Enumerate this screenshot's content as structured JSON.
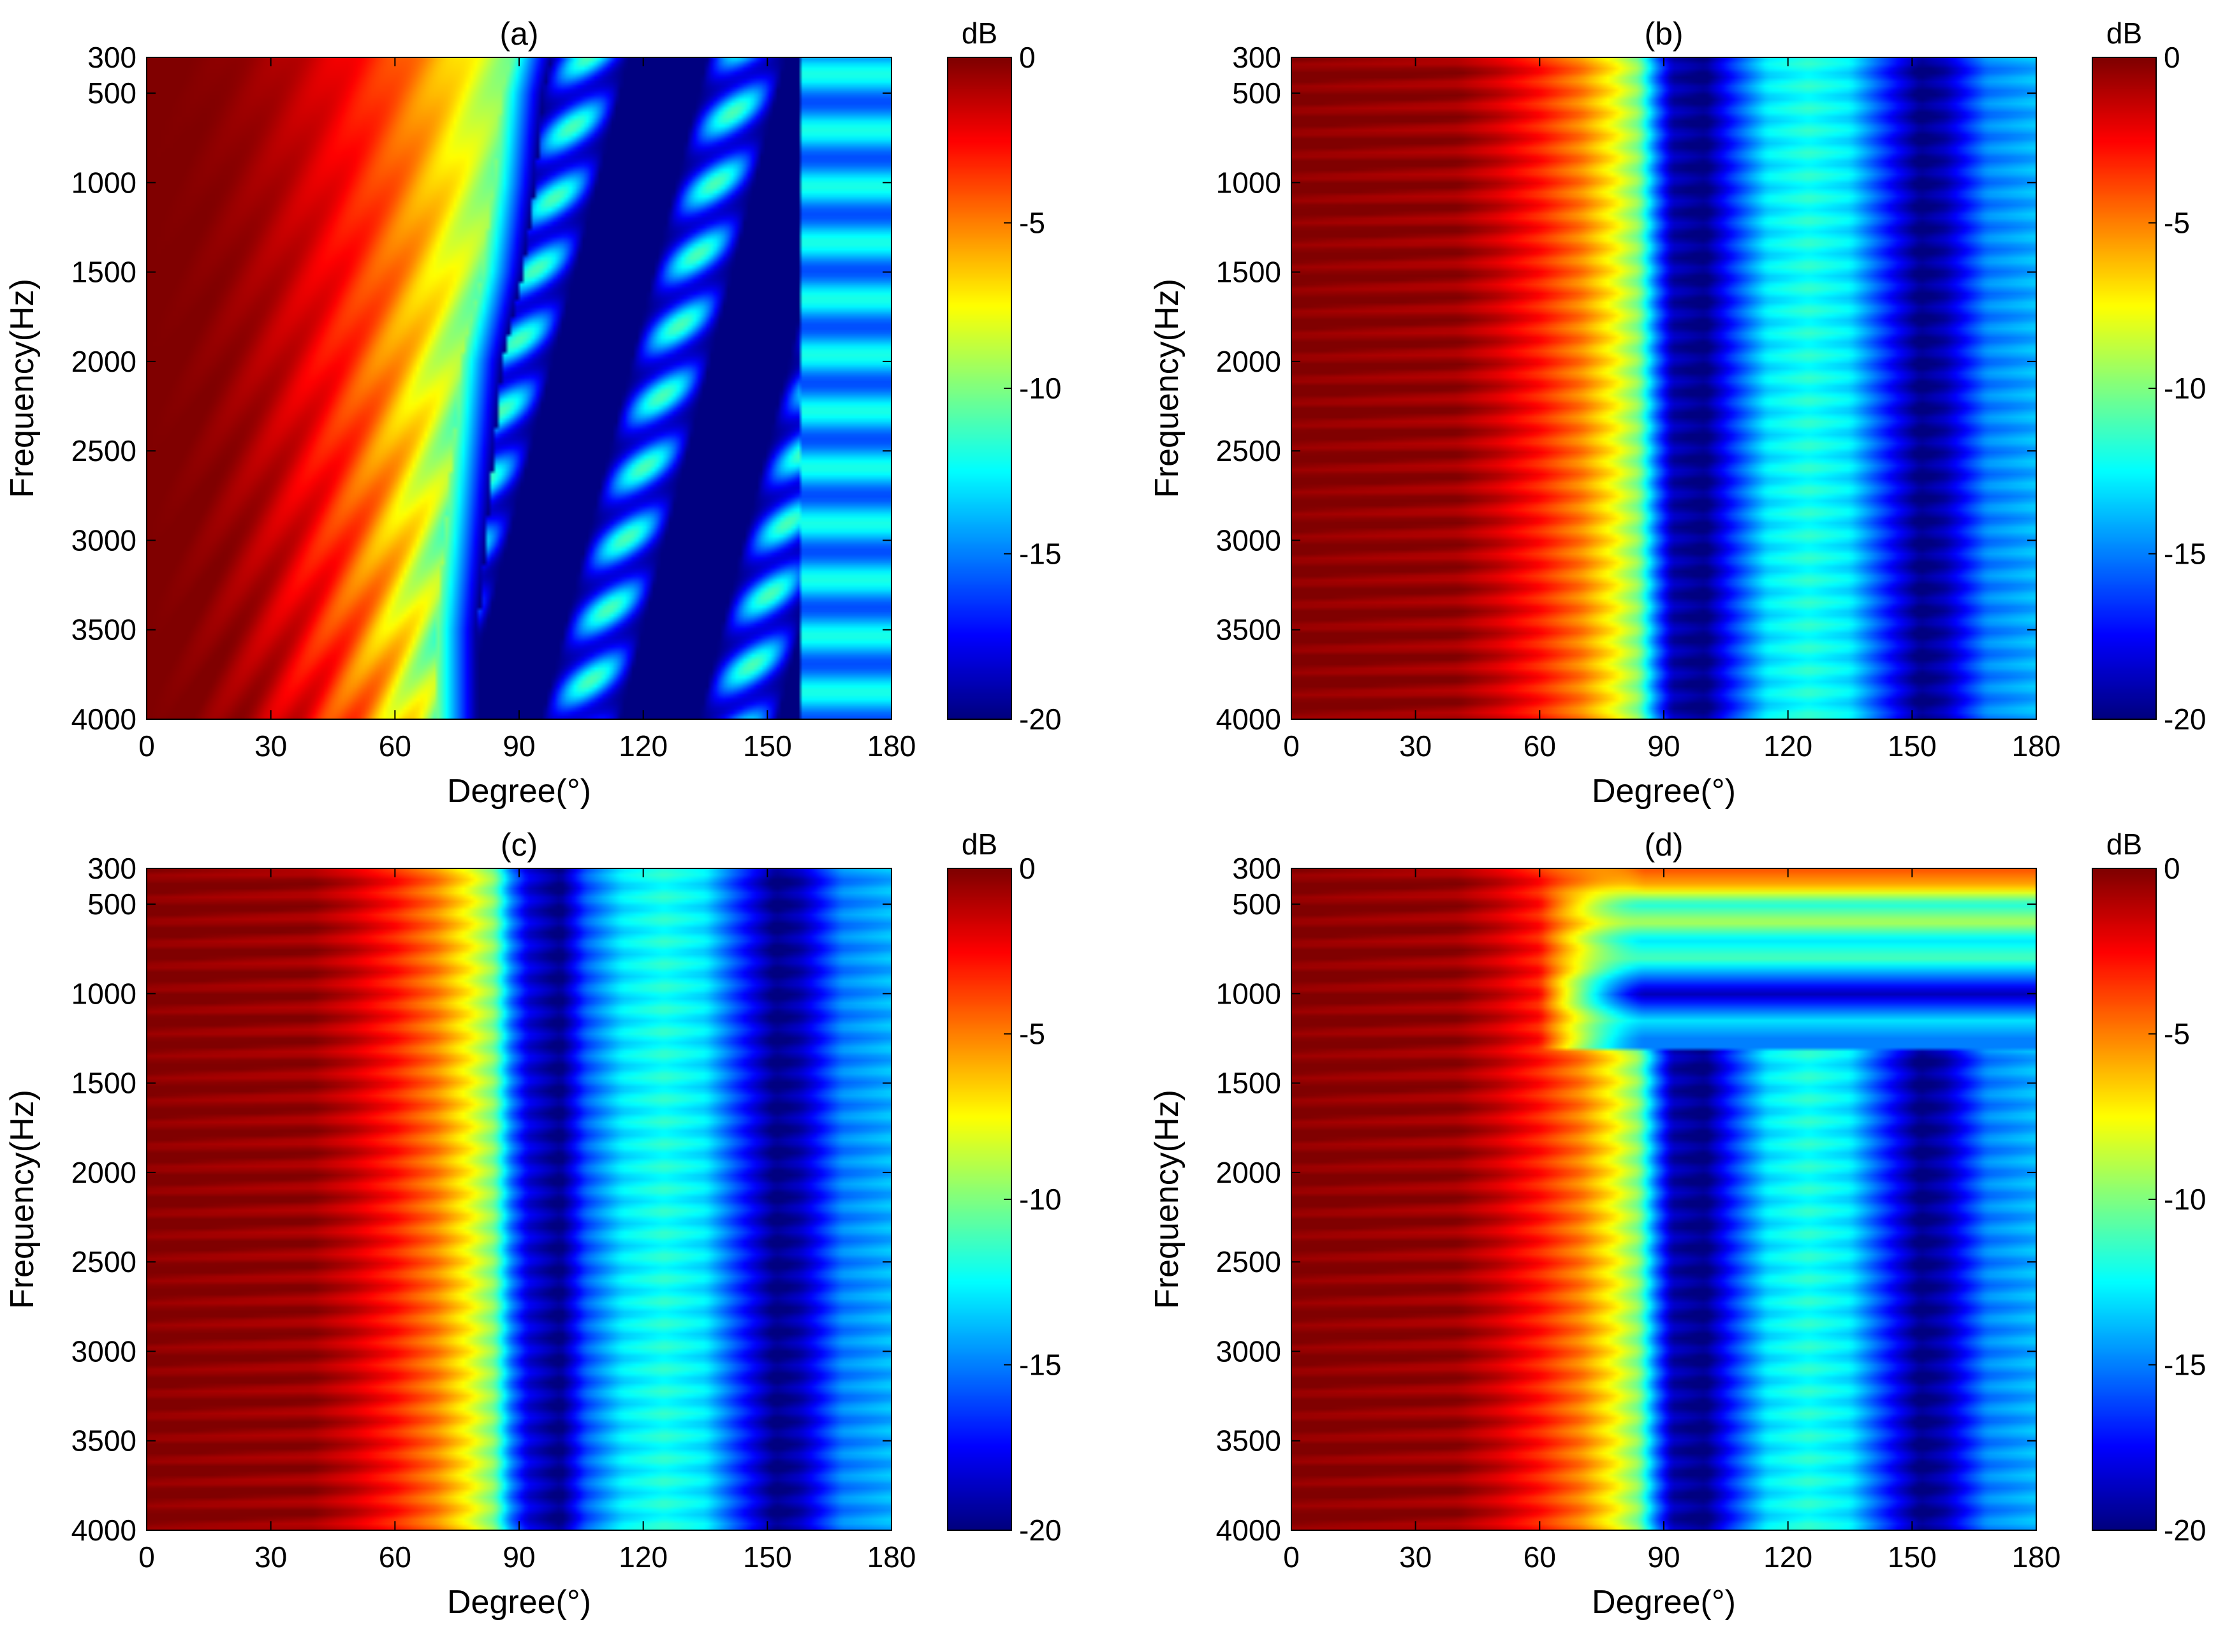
{
  "chart_data": [
    {
      "type": "heatmap",
      "title": "(a)",
      "xlabel": "Degree(°)",
      "ylabel": "Frequency(Hz)",
      "xlim": [
        0,
        180
      ],
      "ylim": [
        300,
        4000
      ],
      "y_reversed": true,
      "x_ticks": [
        0,
        30,
        60,
        90,
        120,
        150,
        180
      ],
      "y_ticks": [
        300,
        500,
        1000,
        1500,
        2000,
        2500,
        3000,
        3500,
        4000
      ],
      "colorbar": {
        "label": "dB",
        "range": [
          -20,
          0
        ],
        "ticks": [
          0,
          -5,
          -10,
          -15,
          -20
        ],
        "colormap": "jet"
      },
      "pattern": "frequency-dependent sidelobes",
      "main_lobe_edge_deg": {
        "frequencies": [
          300,
          500,
          1000,
          1500,
          2000,
          2500,
          3000,
          3500,
          4000
        ],
        "degrees_at_-10dB": [
          88,
          86,
          84,
          81,
          76,
          74,
          72,
          70,
          70
        ]
      },
      "sidelobe_level_db": -11
    },
    {
      "type": "heatmap",
      "title": "(b)",
      "xlabel": "Degree(°)",
      "ylabel": "Frequency(Hz)",
      "xlim": [
        0,
        180
      ],
      "ylim": [
        300,
        4000
      ],
      "y_reversed": true,
      "x_ticks": [
        0,
        30,
        60,
        90,
        120,
        150,
        180
      ],
      "y_ticks": [
        300,
        500,
        1000,
        1500,
        2000,
        2500,
        3000,
        3500,
        4000
      ],
      "colorbar": {
        "label": "dB",
        "range": [
          -20,
          0
        ],
        "ticks": [
          0,
          -5,
          -10,
          -15,
          -20
        ],
        "colormap": "jet"
      },
      "profile_deg": [
        0,
        40,
        50,
        60,
        70,
        78,
        84,
        88,
        92,
        100,
        106,
        115,
        125,
        135,
        142,
        152,
        158,
        168,
        180
      ],
      "profile_db": [
        0,
        -0.5,
        -1.5,
        -3,
        -5,
        -7.5,
        -10,
        -15,
        -19,
        -20,
        -17,
        -13,
        -12,
        -13,
        -16,
        -20,
        -19,
        -15,
        -14
      ]
    },
    {
      "type": "heatmap",
      "title": "(c)",
      "xlabel": "Degree(°)",
      "ylabel": "Frequency(Hz)",
      "xlim": [
        0,
        180
      ],
      "ylim": [
        300,
        4000
      ],
      "y_reversed": true,
      "x_ticks": [
        0,
        30,
        60,
        90,
        120,
        150,
        180
      ],
      "y_ticks": [
        300,
        500,
        1000,
        1500,
        2000,
        2500,
        3000,
        3500,
        4000
      ],
      "colorbar": {
        "label": "dB",
        "range": [
          -20,
          0
        ],
        "ticks": [
          0,
          -5,
          -10,
          -15,
          -20
        ],
        "colormap": "jet"
      },
      "profile_deg": [
        0,
        40,
        50,
        60,
        70,
        78,
        84,
        88,
        92,
        100,
        106,
        115,
        125,
        135,
        142,
        152,
        158,
        168,
        180
      ],
      "profile_db": [
        0,
        -0.5,
        -1.5,
        -3,
        -5,
        -7.5,
        -10,
        -15,
        -18,
        -20,
        -16,
        -13,
        -12,
        -13,
        -16,
        -20,
        -19,
        -15,
        -14
      ]
    },
    {
      "type": "heatmap",
      "title": "(d)",
      "xlabel": "Degree(°)",
      "ylabel": "Frequency(Hz)",
      "xlim": [
        0,
        180
      ],
      "ylim": [
        300,
        4000
      ],
      "y_reversed": true,
      "x_ticks": [
        0,
        30,
        60,
        90,
        120,
        150,
        180
      ],
      "y_ticks": [
        300,
        500,
        1000,
        1500,
        2000,
        2500,
        3000,
        3500,
        4000
      ],
      "colorbar": {
        "label": "dB",
        "range": [
          -20,
          0
        ],
        "ticks": [
          0,
          -5,
          -10,
          -15,
          -20
        ],
        "colormap": "jet"
      },
      "profile_deg": [
        0,
        40,
        50,
        60,
        70,
        78,
        84,
        88,
        92,
        100,
        106,
        115,
        125,
        135,
        142,
        152,
        158,
        168,
        180
      ],
      "profile_db": [
        0,
        -0.5,
        -1.5,
        -3,
        -5,
        -7.5,
        -10,
        -15,
        -19,
        -20,
        -17,
        -13,
        -12,
        -13,
        -16,
        -20,
        -19,
        -15,
        -14
      ],
      "low_frequency_rows": [
        {
          "frequency": 300,
          "db": -4
        },
        {
          "frequency": 400,
          "db": -6
        },
        {
          "frequency": 500,
          "db": -12
        },
        {
          "frequency": 600,
          "db": -9
        },
        {
          "frequency": 700,
          "db": -13
        },
        {
          "frequency": 800,
          "db": -11
        },
        {
          "frequency": 900,
          "db": -15
        },
        {
          "frequency": 1000,
          "db": -19
        },
        {
          "frequency": 1150,
          "db": -13
        },
        {
          "frequency": 1250,
          "db": -15
        }
      ]
    }
  ]
}
